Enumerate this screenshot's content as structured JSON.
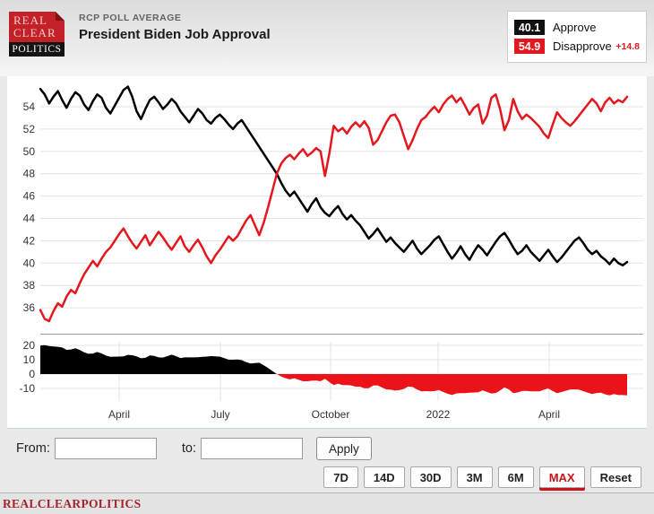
{
  "header": {
    "logo": {
      "line1": "REAL",
      "line2": "CLEAR",
      "line3": "POLITICS"
    },
    "kicker": "RCP POLL AVERAGE",
    "title": "President Biden Job Approval"
  },
  "legend": {
    "approve": {
      "value": "40.1",
      "label": "Approve"
    },
    "disapprove": {
      "value": "54.9",
      "label": "Disapprove",
      "delta": "+14.8"
    }
  },
  "colors": {
    "approve_line": "#000000",
    "disapprove_line": "#e4161e",
    "spread_positive": "#000000",
    "spread_negative": "#ec1219",
    "max_active_red": "#c9141b",
    "logo_red": "#c32127",
    "footer_text": "#a1252b",
    "gridline": "#e3e3e3",
    "axis_line": "#9a9a9a"
  },
  "chart_data": {
    "type": "line",
    "title": "President Biden Job Approval",
    "x_tick_labels": [
      "April",
      "July",
      "October",
      "2022",
      "April"
    ],
    "x_range_note": "late January 2021 through mid June 2022",
    "y_ticks_main": [
      54,
      52,
      50,
      48,
      46,
      44,
      42,
      40,
      38,
      36
    ],
    "ylim_main": [
      33.5,
      55.9
    ],
    "spread_panel": {
      "definition": "approve minus disapprove",
      "y_ticks": [
        20,
        10,
        0,
        -10
      ],
      "ylim": [
        -17.5,
        22.5
      ]
    },
    "legend_position": "top-right",
    "grid": "horizontal",
    "series": [
      {
        "name": "Approve",
        "color": "#000000",
        "values": [
          55.6,
          55.1,
          54.3,
          54.9,
          55.4,
          54.6,
          53.9,
          54.7,
          55.3,
          55.0,
          54.2,
          53.7,
          54.5,
          55.1,
          54.8,
          53.9,
          53.4,
          54.1,
          54.8,
          55.5,
          55.8,
          54.9,
          53.6,
          52.9,
          53.8,
          54.6,
          54.9,
          54.4,
          53.8,
          54.2,
          54.7,
          54.3,
          53.6,
          53.1,
          52.6,
          53.2,
          53.8,
          53.4,
          52.8,
          52.5,
          53.0,
          53.3,
          52.9,
          52.4,
          52.0,
          52.5,
          52.8,
          52.2,
          51.6,
          51.0,
          50.4,
          49.8,
          49.2,
          48.6,
          48.0,
          47.2,
          46.5,
          46.0,
          46.4,
          45.8,
          45.2,
          44.6,
          45.3,
          45.8,
          45.0,
          44.5,
          44.2,
          44.7,
          45.1,
          44.4,
          43.9,
          44.3,
          43.8,
          43.4,
          42.8,
          42.2,
          42.6,
          43.1,
          42.5,
          41.9,
          42.3,
          41.8,
          41.4,
          41.0,
          41.5,
          42.0,
          41.3,
          40.8,
          41.2,
          41.6,
          42.1,
          42.4,
          41.7,
          41.0,
          40.4,
          40.9,
          41.5,
          40.8,
          40.3,
          41.0,
          41.6,
          41.2,
          40.7,
          41.3,
          41.9,
          42.4,
          42.7,
          42.1,
          41.4,
          40.8,
          41.1,
          41.6,
          41.0,
          40.6,
          40.2,
          40.7,
          41.2,
          40.6,
          40.1,
          40.5,
          41.0,
          41.5,
          42.0,
          42.3,
          41.8,
          41.2,
          40.8,
          41.1,
          40.6,
          40.3,
          39.9,
          40.4,
          40.0,
          39.8,
          40.1
        ]
      },
      {
        "name": "Disapprove",
        "color": "#e4161e",
        "values": [
          35.8,
          35.0,
          34.8,
          35.7,
          36.4,
          36.1,
          37.0,
          37.6,
          37.3,
          38.2,
          39.0,
          39.6,
          40.2,
          39.7,
          40.4,
          41.0,
          41.4,
          42.0,
          42.6,
          43.1,
          42.4,
          41.8,
          41.3,
          41.9,
          42.5,
          41.6,
          42.2,
          42.8,
          42.3,
          41.7,
          41.2,
          41.8,
          42.4,
          41.5,
          41.0,
          41.6,
          42.1,
          41.4,
          40.6,
          40.0,
          40.7,
          41.2,
          41.8,
          42.4,
          42.0,
          42.4,
          43.1,
          43.8,
          44.3,
          43.4,
          42.5,
          43.6,
          45.0,
          46.5,
          48.0,
          48.9,
          49.4,
          49.7,
          49.3,
          49.8,
          50.2,
          49.6,
          49.9,
          50.3,
          50.0,
          47.8,
          49.8,
          52.3,
          51.8,
          52.1,
          51.6,
          52.2,
          52.6,
          52.2,
          52.7,
          52.1,
          50.6,
          51.0,
          51.8,
          52.6,
          53.2,
          53.3,
          52.6,
          51.4,
          50.2,
          51.0,
          52.0,
          52.8,
          53.1,
          53.6,
          54.0,
          53.5,
          54.2,
          54.7,
          55.0,
          54.4,
          54.8,
          54.1,
          53.3,
          53.9,
          54.2,
          52.5,
          53.2,
          54.8,
          55.1,
          53.8,
          51.9,
          52.8,
          54.7,
          53.6,
          52.9,
          53.3,
          53.0,
          52.6,
          52.2,
          51.6,
          51.2,
          52.4,
          53.5,
          53.0,
          52.6,
          52.3,
          52.7,
          53.2,
          53.7,
          54.2,
          54.7,
          54.3,
          53.6,
          54.4,
          54.8,
          54.3,
          54.6,
          54.4,
          54.9
        ]
      }
    ],
    "final": {
      "approve": 40.1,
      "disapprove": 54.9,
      "spread": "+14.8"
    }
  },
  "controls": {
    "from_label": "From:",
    "to_label": "to:",
    "from_value": "",
    "to_value": "",
    "apply_label": "Apply",
    "presets": [
      {
        "label": "7D",
        "active": false
      },
      {
        "label": "14D",
        "active": false
      },
      {
        "label": "30D",
        "active": false
      },
      {
        "label": "3M",
        "active": false
      },
      {
        "label": "6M",
        "active": false
      },
      {
        "label": "MAX",
        "active": true
      },
      {
        "label": "Reset",
        "active": false
      }
    ]
  },
  "footer": {
    "brand": "REALCLEARPOLITICS"
  }
}
